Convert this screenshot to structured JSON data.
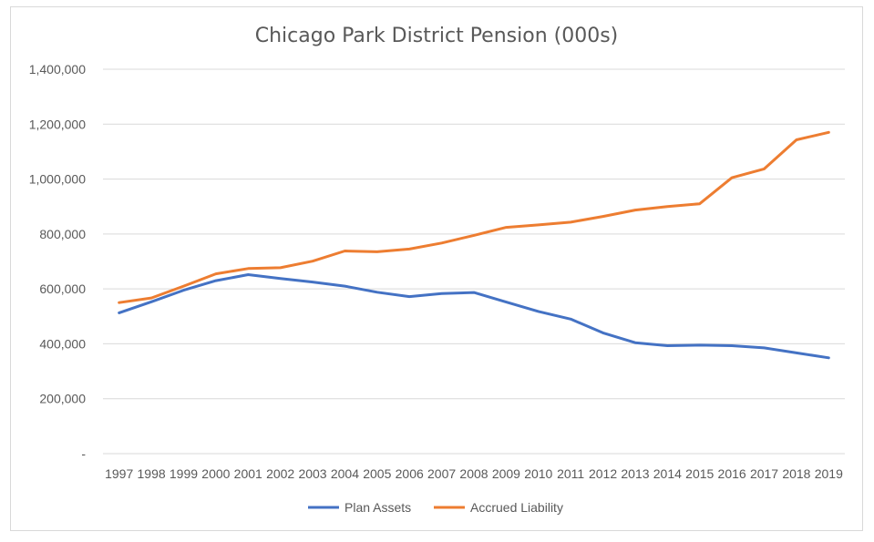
{
  "chart_data": {
    "type": "line",
    "title": "Chicago Park District Pension (000s)",
    "xlabel": "",
    "ylabel": "",
    "x": [
      "1997",
      "1998",
      "1999",
      "2000",
      "2001",
      "2002",
      "2003",
      "2004",
      "2005",
      "2006",
      "2007",
      "2008",
      "2009",
      "2010",
      "2011",
      "2012",
      "2013",
      "2014",
      "2015",
      "2016",
      "2017",
      "2018",
      "2019"
    ],
    "ylim": [
      0,
      1400000
    ],
    "yticks": [
      0,
      200000,
      400000,
      600000,
      800000,
      1000000,
      1200000,
      1400000
    ],
    "ytick_labels": [
      "-",
      "200,000",
      "400,000",
      "600,000",
      "800,000",
      "1,000,000",
      "1,200,000",
      "1,400,000"
    ],
    "grid": true,
    "legend_position": "bottom",
    "series": [
      {
        "name": "Plan Assets",
        "color": "#4472c4",
        "values": [
          513000,
          553000,
          595000,
          630000,
          652000,
          638000,
          625000,
          610000,
          588000,
          572000,
          583000,
          587000,
          552000,
          518000,
          490000,
          440000,
          404000,
          393000,
          395000,
          393000,
          385000,
          367000,
          349000
        ]
      },
      {
        "name": "Accrued Liability",
        "color": "#ed7d31",
        "values": [
          550000,
          567000,
          610000,
          655000,
          674000,
          677000,
          701000,
          738000,
          735000,
          745000,
          767000,
          795000,
          824000,
          833000,
          843000,
          864000,
          887000,
          900000,
          910000,
          1005000,
          1037000,
          1143000,
          1170000
        ]
      }
    ]
  }
}
